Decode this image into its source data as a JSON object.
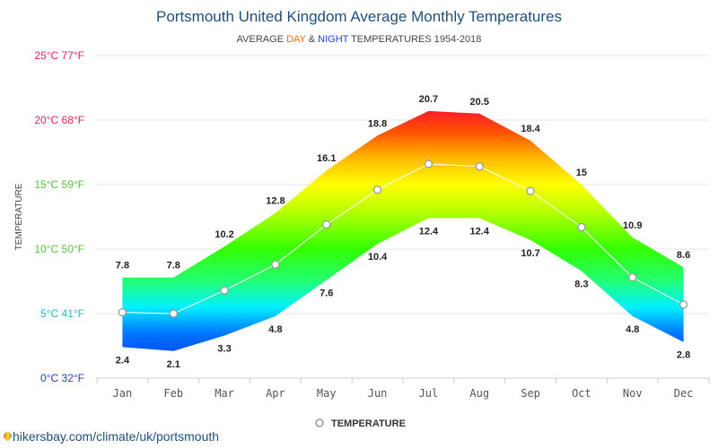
{
  "chart_data": {
    "type": "area",
    "title": "Portsmouth United Kingdom Average Monthly Temperatures",
    "subtitle": {
      "prefix": "AVERAGE ",
      "day": "DAY",
      "amp": " & ",
      "night": "NIGHT",
      "suffix": " TEMPERATURES 1954-2018"
    },
    "ylabel": "TEMPERATURE",
    "ylim": [
      0,
      25
    ],
    "grid": true,
    "y_ticks": [
      {
        "value": 0,
        "label": "0°C 32°F",
        "color": "#2a3fc4"
      },
      {
        "value": 5,
        "label": "5°C 41°F",
        "color": "#28b7c9"
      },
      {
        "value": 10,
        "label": "10°C 50°F",
        "color": "#58c43a"
      },
      {
        "value": 15,
        "label": "15°C 59°F",
        "color": "#58c43a"
      },
      {
        "value": 20,
        "label": "20°C 68°F",
        "color": "#e0245e"
      },
      {
        "value": 25,
        "label": "25°C 77°F",
        "color": "#e0245e"
      }
    ],
    "categories": [
      "Jan",
      "Feb",
      "Mar",
      "Apr",
      "May",
      "Jun",
      "Jul",
      "Aug",
      "Sep",
      "Oct",
      "Nov",
      "Dec"
    ],
    "day": [
      7.8,
      7.8,
      10.2,
      12.8,
      16.1,
      18.8,
      20.7,
      20.5,
      18.4,
      15,
      10.9,
      8.6
    ],
    "night": [
      2.4,
      2.1,
      3.3,
      4.8,
      7.6,
      10.4,
      12.4,
      12.4,
      10.7,
      8.3,
      4.8,
      2.8
    ],
    "series": [
      {
        "name": "TEMPERATURE",
        "values": [
          5.1,
          5.0,
          6.8,
          8.8,
          11.9,
          14.6,
          16.6,
          16.4,
          14.5,
          11.7,
          7.8,
          5.7
        ]
      }
    ],
    "legend": {
      "position": "bottom",
      "label": "TEMPERATURE"
    }
  },
  "footer": {
    "url": "hikersbay.com/climate/uk/portsmouth"
  }
}
